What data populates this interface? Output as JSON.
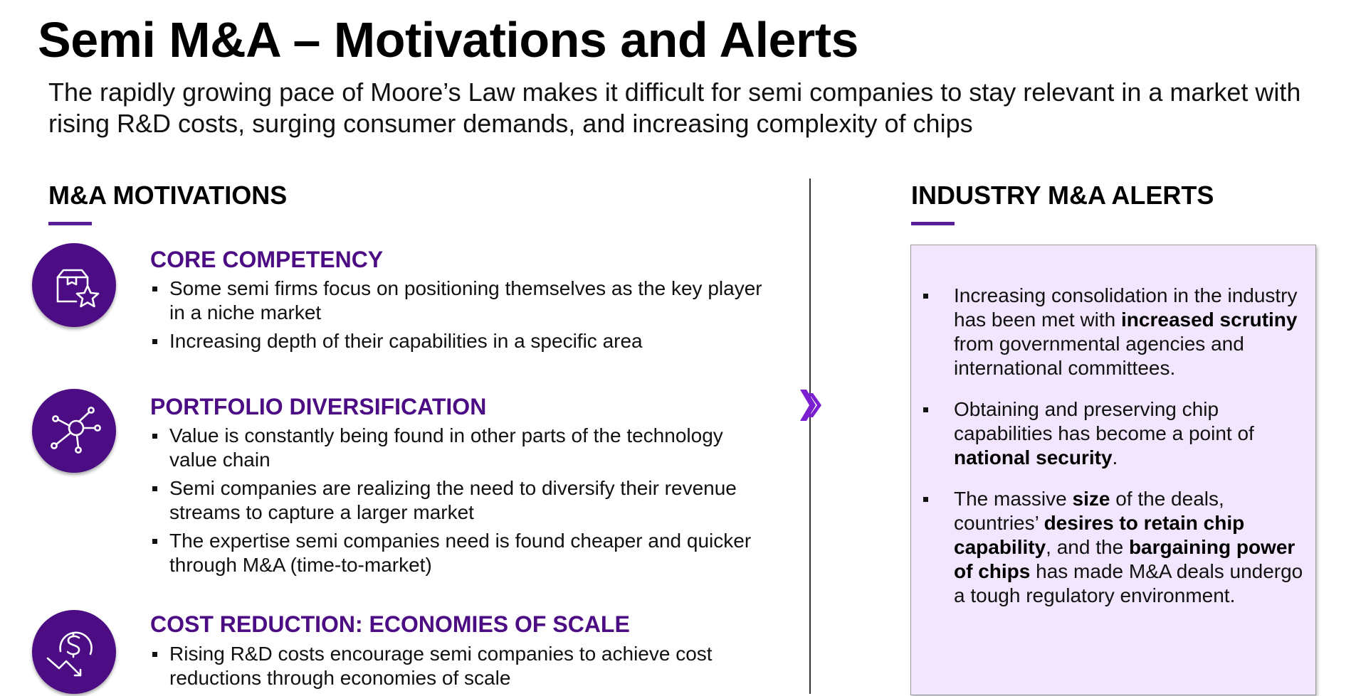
{
  "title": "Semi M&A – Motivations and Alerts",
  "subtitle": "The rapidly growing pace of Moore’s Law makes it difficult for semi companies to stay relevant in a market with rising R&D costs, surging consumer demands, and increasing complexity of chips",
  "colors": {
    "accent": "#4c0d84",
    "alert_background": "#f1e6fd",
    "underline": "#5a1e96"
  },
  "motivations": {
    "heading": "M&A MOTIVATIONS",
    "items": [
      {
        "icon": "box-star-icon",
        "title": "CORE COMPETENCY",
        "bullets": [
          "Some semi firms focus on positioning themselves as the key player in a niche market",
          "Increasing depth of their capabilities in a specific area"
        ]
      },
      {
        "icon": "network-hub-icon",
        "title": "PORTFOLIO DIVERSIFICATION",
        "bullets": [
          "Value is constantly being found in other parts of the technology value chain",
          "Semi companies are realizing the need to diversify their revenue streams to capture a larger market",
          "The expertise semi companies need is found cheaper and quicker through M&A (time-to-market)"
        ]
      },
      {
        "icon": "dollar-decline-icon",
        "title": "COST REDUCTION: ECONOMIES OF SCALE",
        "bullets": [
          "Rising R&D costs encourage semi companies to achieve cost reductions through economies of scale"
        ]
      }
    ]
  },
  "alerts": {
    "heading": "INDUSTRY M&A ALERTS",
    "items": [
      {
        "parts": [
          {
            "t": "Increasing consolidation in the industry has been met with ",
            "b": false
          },
          {
            "t": "increased scrutiny",
            "b": true
          },
          {
            "t": " from governmental agencies and international committees.",
            "b": false
          }
        ]
      },
      {
        "parts": [
          {
            "t": "Obtaining and preserving chip capabilities has become a point of ",
            "b": false
          },
          {
            "t": "national security",
            "b": true
          },
          {
            "t": ".",
            "b": false
          }
        ]
      },
      {
        "parts": [
          {
            "t": "The massive ",
            "b": false
          },
          {
            "t": "size",
            "b": true
          },
          {
            "t": " of the deals, countries’ ",
            "b": false
          },
          {
            "t": "desires to retain chip capability",
            "b": true
          },
          {
            "t": ", and the ",
            "b": false
          },
          {
            "t": "bargaining power of chips",
            "b": true
          },
          {
            "t": " has made M&A deals undergo a tough regulatory environment.",
            "b": false
          }
        ]
      }
    ]
  }
}
